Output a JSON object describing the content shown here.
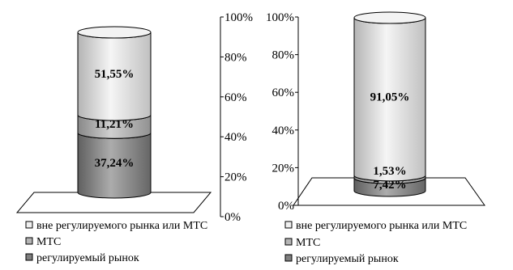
{
  "chart_data": [
    {
      "type": "bar",
      "stacked": true,
      "style": "3d-cylinder",
      "ylim": [
        0,
        100
      ],
      "y_ticks": [
        "0%",
        "20%",
        "40%",
        "60%",
        "80%",
        "100%"
      ],
      "axis_side": "right",
      "series": [
        {
          "name": "регулируемый рынок",
          "value": 37.24,
          "label": "37,24%",
          "color": "#7f7f7f"
        },
        {
          "name": "МТС",
          "value": 11.21,
          "label": "11,21%",
          "color": "#b5b5b5"
        },
        {
          "name": "вне регулируемого рынка или МТС",
          "value": 51.55,
          "label": "51,55%",
          "color": "#f0f0f0"
        }
      ],
      "legend": [
        "вне регулируемого рынка или МТС",
        "МТС",
        "регулируемый рынок"
      ]
    },
    {
      "type": "bar",
      "stacked": true,
      "style": "3d-cylinder",
      "ylim": [
        0,
        100
      ],
      "y_ticks": [
        "0%",
        "20%",
        "40%",
        "60%",
        "80%",
        "100%"
      ],
      "axis_side": "left",
      "series": [
        {
          "name": "регулируемый рынок",
          "value": 7.42,
          "label": "7,42%",
          "color": "#7f7f7f"
        },
        {
          "name": "МТС",
          "value": 1.53,
          "label": "1,53%",
          "color": "#b5b5b5"
        },
        {
          "name": "вне регулируемого рынка или МТС",
          "value": 91.05,
          "label": "91,05%",
          "color": "#f0f0f0"
        }
      ],
      "legend": [
        "вне регулируемого рынка или МТС",
        "МТС",
        "регулируемый рынок"
      ]
    }
  ]
}
